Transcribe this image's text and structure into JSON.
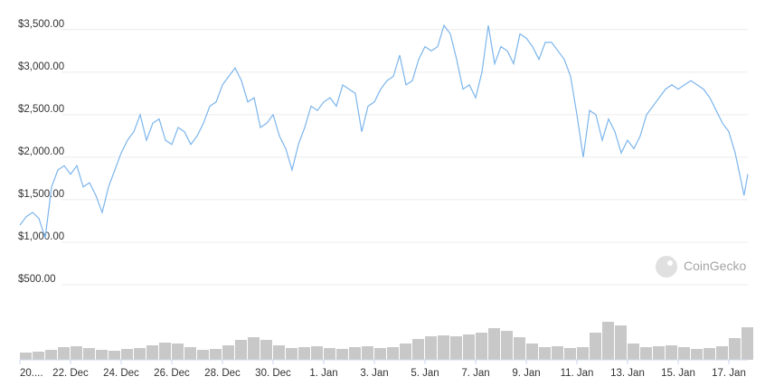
{
  "chart_data": {
    "type": "line",
    "watermark": "CoinGecko",
    "color": "#7cb5ec",
    "x": [
      0,
      0.25,
      0.5,
      0.75,
      1,
      1.25,
      1.5,
      1.75,
      2,
      2.25,
      2.5,
      2.75,
      3,
      3.25,
      3.5,
      3.75,
      4,
      4.25,
      4.5,
      4.75,
      5,
      5.25,
      5.5,
      5.75,
      6,
      6.25,
      6.5,
      6.75,
      7,
      7.25,
      7.5,
      7.75,
      8,
      8.25,
      8.5,
      8.75,
      9,
      9.25,
      9.5,
      9.75,
      10,
      10.25,
      10.5,
      10.75,
      11,
      11.25,
      11.5,
      11.75,
      12,
      12.25,
      12.5,
      12.75,
      13,
      13.25,
      13.5,
      13.75,
      14,
      14.25,
      14.5,
      14.75,
      15,
      15.25,
      15.5,
      15.75,
      16,
      16.25,
      16.5,
      16.75,
      17,
      17.25,
      17.5,
      17.75,
      18,
      18.25,
      18.5,
      18.75,
      19,
      19.25,
      19.5,
      19.75,
      20,
      20.25,
      20.5,
      20.75,
      21,
      21.25,
      21.5,
      21.75,
      22,
      22.25,
      22.5,
      22.75,
      23,
      23.25,
      23.5,
      23.75,
      24,
      24.25,
      24.5,
      24.75,
      25,
      25.25,
      25.5,
      25.75,
      26,
      26.25,
      26.5,
      26.75,
      27,
      27.25,
      27.5,
      27.75,
      28,
      28.25,
      28.5,
      28.6,
      28.75
    ],
    "values": [
      1200,
      1300,
      1350,
      1280,
      1050,
      1650,
      1850,
      1900,
      1800,
      1900,
      1650,
      1700,
      1550,
      1350,
      1650,
      1850,
      2050,
      2200,
      2300,
      2500,
      2200,
      2400,
      2450,
      2200,
      2150,
      2350,
      2300,
      2150,
      2250,
      2400,
      2600,
      2650,
      2850,
      2950,
      3050,
      2900,
      2650,
      2700,
      2350,
      2400,
      2500,
      2250,
      2100,
      1850,
      2150,
      2350,
      2600,
      2550,
      2650,
      2700,
      2600,
      2850,
      2800,
      2750,
      2300,
      2600,
      2650,
      2800,
      2900,
      2950,
      3200,
      2850,
      2900,
      3150,
      3300,
      3250,
      3300,
      3550,
      3450,
      3150,
      2800,
      2850,
      2700,
      3000,
      3550,
      3100,
      3300,
      3250,
      3100,
      3450,
      3400,
      3300,
      3150,
      3350,
      3350,
      3250,
      3150,
      2950,
      2500,
      2000,
      2550,
      2500,
      2200,
      2450,
      2300,
      2050,
      2200,
      2100,
      2250,
      2500,
      2600,
      2700,
      2800,
      2850,
      2800,
      2850,
      2900,
      2850,
      2800,
      2700,
      2550,
      2400,
      2300,
      2050,
      1700,
      1550,
      1800
    ],
    "volume": {
      "color": "#c8c8c8",
      "x": [
        0,
        0.5,
        1,
        1.5,
        2,
        2.5,
        3,
        3.5,
        4,
        4.5,
        5,
        5.5,
        6,
        6.5,
        7,
        7.5,
        8,
        8.5,
        9,
        9.5,
        10,
        10.5,
        11,
        11.5,
        12,
        12.5,
        13,
        13.5,
        14,
        14.5,
        15,
        15.5,
        16,
        16.5,
        17,
        17.5,
        18,
        18.5,
        19,
        19.5,
        20,
        20.5,
        21,
        21.5,
        22,
        22.5,
        23,
        23.5,
        24,
        24.5,
        25,
        25.5,
        26,
        26.5,
        27,
        27.5,
        28,
        28.5
      ],
      "values": [
        8,
        9,
        11,
        14,
        15,
        13,
        11,
        10,
        12,
        13,
        16,
        19,
        18,
        14,
        11,
        12,
        16,
        22,
        25,
        22,
        16,
        13,
        14,
        15,
        13,
        12,
        14,
        15,
        13,
        14,
        18,
        23,
        26,
        27,
        26,
        28,
        30,
        35,
        32,
        25,
        18,
        14,
        15,
        13,
        14,
        30,
        42,
        38,
        18,
        14,
        15,
        16,
        14,
        12,
        13,
        15,
        24,
        36
      ]
    },
    "xlim": [
      0,
      28.75
    ],
    "ylim": [
      0,
      3700
    ],
    "yticks": [
      {
        "value": 500,
        "label": "$500.00"
      },
      {
        "value": 1000,
        "label": "$1,000.00"
      },
      {
        "value": 1500,
        "label": "$1,500.00"
      },
      {
        "value": 2000,
        "label": "$2,000.00"
      },
      {
        "value": 2500,
        "label": "$2,500.00"
      },
      {
        "value": 3000,
        "label": "$3,000.00"
      },
      {
        "value": 3500,
        "label": "$3,500.00"
      }
    ],
    "xticks": [
      {
        "value": 0,
        "label": "20...."
      },
      {
        "value": 2,
        "label": "22. Dec"
      },
      {
        "value": 4,
        "label": "24. Dec"
      },
      {
        "value": 6,
        "label": "26. Dec"
      },
      {
        "value": 8,
        "label": "28. Dec"
      },
      {
        "value": 10,
        "label": "30. Dec"
      },
      {
        "value": 12,
        "label": "1. Jan"
      },
      {
        "value": 14,
        "label": "3. Jan"
      },
      {
        "value": 16,
        "label": "5. Jan"
      },
      {
        "value": 18,
        "label": "7. Jan"
      },
      {
        "value": 20,
        "label": "9. Jan"
      },
      {
        "value": 22,
        "label": "11. Jan"
      },
      {
        "value": 24,
        "label": "13. Jan"
      },
      {
        "value": 26,
        "label": "15. Jan"
      },
      {
        "value": 28,
        "label": "17. Jan"
      }
    ],
    "grid": true
  }
}
